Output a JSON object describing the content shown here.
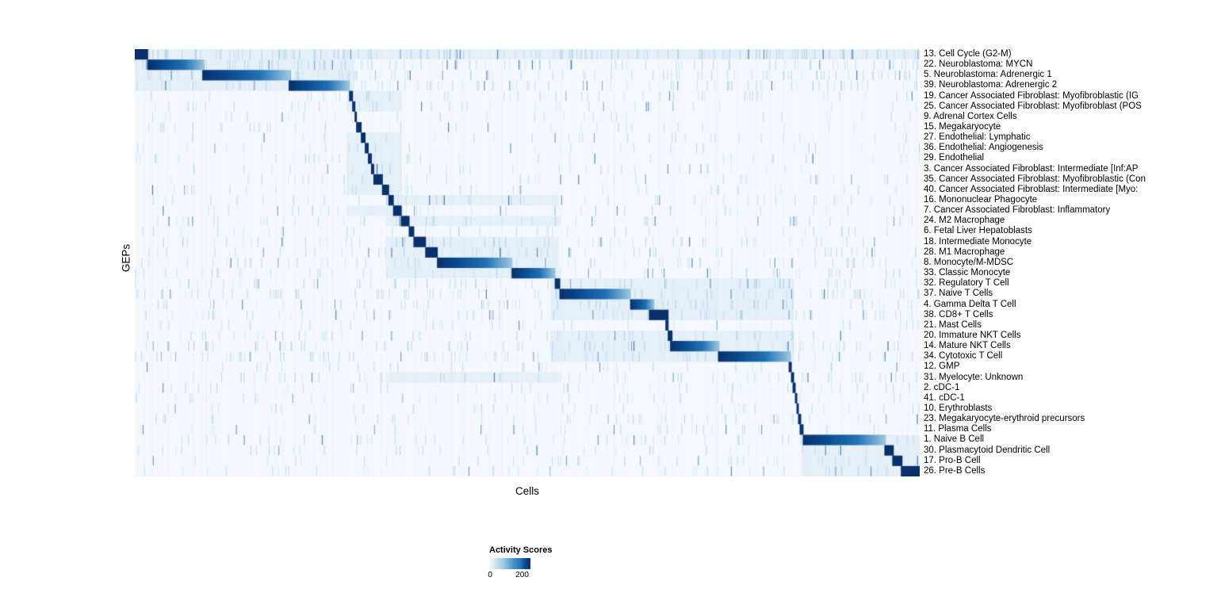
{
  "chart_data": {
    "type": "heatmap",
    "title": "",
    "xlabel": "Cells",
    "ylabel": "GEPs",
    "colormap": "Blues",
    "color_low": "#f5f9fd",
    "color_mid": "#6baed6",
    "color_strong": "#2171b5",
    "color_high": "#08306b",
    "color_fade": "#9ecae1",
    "legend": {
      "title": "Activity Scores",
      "min": 0,
      "max": 200,
      "min_label": "0",
      "max_label": "200",
      "max_frac": 0.8
    },
    "description": "GEP activity scores per cell; rows are gene expression programs sorted so that each program's most active cells form a diagonal of dark blocks.",
    "rows": [
      {
        "label": "13. Cell Cycle (G2-M)",
        "block": [
          0.0,
          0.017
        ],
        "noise": 0.55,
        "region": [
          0.0,
          1.0
        ]
      },
      {
        "label": "22. Neuroblastoma: MYCN",
        "block": [
          0.016,
          0.089
        ],
        "noise": 0.4,
        "region": [
          0.0,
          0.28
        ]
      },
      {
        "label": "5. Neuroblastoma: Adrenergic 1",
        "block": [
          0.086,
          0.198
        ],
        "noise": 0.32,
        "region": [
          0.0,
          0.28
        ]
      },
      {
        "label": "39. Neuroblastoma: Adrenergic 2",
        "block": [
          0.196,
          0.274
        ],
        "noise": 0.3,
        "region": [
          0.0,
          0.28
        ]
      },
      {
        "label": "19. Cancer Associated Fibroblast: Myofibroblastic (IG",
        "block": [
          0.273,
          0.278
        ],
        "noise": 0.15,
        "region": [
          0.27,
          0.34
        ]
      },
      {
        "label": "25. Cancer Associated Fibroblast: Myofibroblast (POS",
        "block": [
          0.277,
          0.281
        ],
        "noise": 0.12,
        "region": [
          0.27,
          0.34
        ]
      },
      {
        "label": "9. Adrenal Cortex Cells",
        "block": [
          0.28,
          0.283
        ],
        "noise": 0.1,
        "region": null
      },
      {
        "label": "15. Megakaryocyte",
        "block": [
          0.282,
          0.289
        ],
        "noise": 0.12,
        "region": null
      },
      {
        "label": "27. Endothelial: Lymphatic",
        "block": [
          0.288,
          0.294
        ],
        "noise": 0.1,
        "region": [
          0.27,
          0.34
        ]
      },
      {
        "label": "36. Endothelial: Angiogenesis",
        "block": [
          0.293,
          0.298
        ],
        "noise": 0.1,
        "region": [
          0.27,
          0.34
        ]
      },
      {
        "label": "29. Endothelial",
        "block": [
          0.297,
          0.302
        ],
        "noise": 0.12,
        "region": [
          0.27,
          0.34
        ]
      },
      {
        "label": "3. Cancer Associated Fibroblast: Intermediate [Inf:AP",
        "block": [
          0.301,
          0.305
        ],
        "noise": 0.12,
        "region": [
          0.27,
          0.34
        ]
      },
      {
        "label": "35. Cancer Associated Fibroblast: Myofibroblastic (Con",
        "block": [
          0.304,
          0.316
        ],
        "noise": 0.12,
        "region": [
          0.27,
          0.34
        ]
      },
      {
        "label": "40. Cancer Associated Fibroblast: Intermediate [Myo:",
        "block": [
          0.315,
          0.324
        ],
        "noise": 0.12,
        "region": [
          0.27,
          0.34
        ]
      },
      {
        "label": "16. Mononuclear Phagocyte",
        "block": [
          0.323,
          0.33
        ],
        "noise": 0.16,
        "region": [
          0.32,
          0.54
        ]
      },
      {
        "label": "7. Cancer Associated Fibroblast: Inflammatory",
        "block": [
          0.329,
          0.34
        ],
        "noise": 0.15,
        "region": [
          0.27,
          0.34
        ]
      },
      {
        "label": "24. M2 Macrophage",
        "block": [
          0.339,
          0.35
        ],
        "noise": 0.18,
        "region": [
          0.32,
          0.54
        ]
      },
      {
        "label": "6. Fetal Liver Hepatoblasts",
        "block": [
          0.349,
          0.356
        ],
        "noise": 0.12,
        "region": null
      },
      {
        "label": "18. Intermediate Monocyte",
        "block": [
          0.355,
          0.371
        ],
        "noise": 0.2,
        "region": [
          0.32,
          0.54
        ]
      },
      {
        "label": "28. M1 Macrophage",
        "block": [
          0.37,
          0.386
        ],
        "noise": 0.2,
        "region": [
          0.32,
          0.54
        ]
      },
      {
        "label": "8. Monocyte/M-MDSC",
        "block": [
          0.385,
          0.481
        ],
        "noise": 0.24,
        "region": [
          0.32,
          0.54
        ]
      },
      {
        "label": "33. Classic Monocyte",
        "block": [
          0.48,
          0.536
        ],
        "noise": 0.2,
        "region": [
          0.32,
          0.54
        ]
      },
      {
        "label": "32. Regulatory T Cell",
        "block": [
          0.535,
          0.542
        ],
        "noise": 0.24,
        "region": [
          0.53,
          0.84
        ]
      },
      {
        "label": "37. Naive T Cells",
        "block": [
          0.541,
          0.632
        ],
        "noise": 0.3,
        "region": [
          0.53,
          0.84
        ]
      },
      {
        "label": "4. Gamma Delta T Cell",
        "block": [
          0.631,
          0.662
        ],
        "noise": 0.24,
        "region": [
          0.53,
          0.84
        ]
      },
      {
        "label": "38. CD8+ T Cells",
        "block": [
          0.655,
          0.68
        ],
        "noise": 0.24,
        "region": [
          0.53,
          0.84
        ]
      },
      {
        "label": "21. Mast Cells",
        "block": [
          0.676,
          0.68
        ],
        "noise": 0.12,
        "region": null
      },
      {
        "label": "20. Immature NKT Cells",
        "block": [
          0.679,
          0.685
        ],
        "noise": 0.2,
        "region": [
          0.53,
          0.84
        ]
      },
      {
        "label": "14. Mature NKT Cells",
        "block": [
          0.682,
          0.745
        ],
        "noise": 0.28,
        "region": [
          0.53,
          0.84
        ]
      },
      {
        "label": "34. Cytotoxic T Cell",
        "block": [
          0.743,
          0.836
        ],
        "noise": 0.28,
        "region": [
          0.53,
          0.84
        ]
      },
      {
        "label": "12. GMP",
        "block": [
          0.833,
          0.837
        ],
        "noise": 0.12,
        "region": null
      },
      {
        "label": "31. Myelocyte: Unknown",
        "block": [
          0.836,
          0.84
        ],
        "noise": 0.2,
        "region": [
          0.32,
          0.54
        ]
      },
      {
        "label": "2. cDC-1",
        "block": [
          0.838,
          0.842
        ],
        "noise": 0.15,
        "region": null
      },
      {
        "label": "41. cDC-1",
        "block": [
          0.841,
          0.844
        ],
        "noise": 0.12,
        "region": null
      },
      {
        "label": "10. Erythroblasts",
        "block": [
          0.843,
          0.846
        ],
        "noise": 0.12,
        "region": null
      },
      {
        "label": "23. Megakaryocyte-erythroid precursors",
        "block": [
          0.845,
          0.849
        ],
        "noise": 0.15,
        "region": null
      },
      {
        "label": "11. Plasma Cells",
        "block": [
          0.847,
          0.852
        ],
        "noise": 0.12,
        "region": null
      },
      {
        "label": "1. Naive B Cell",
        "block": [
          0.851,
          0.957
        ],
        "noise": 0.2,
        "region": [
          0.85,
          1.0
        ]
      },
      {
        "label": "30. Plasmacytoid Dendritic Cell",
        "block": [
          0.955,
          0.967
        ],
        "noise": 0.12,
        "region": [
          0.85,
          1.0
        ]
      },
      {
        "label": "17. Pro-B Cell",
        "block": [
          0.965,
          0.978
        ],
        "noise": 0.12,
        "region": [
          0.85,
          1.0
        ]
      },
      {
        "label": "26. Pre-B Cells",
        "block": [
          0.976,
          1.0
        ],
        "noise": 0.15,
        "region": [
          0.85,
          1.0
        ]
      }
    ]
  }
}
